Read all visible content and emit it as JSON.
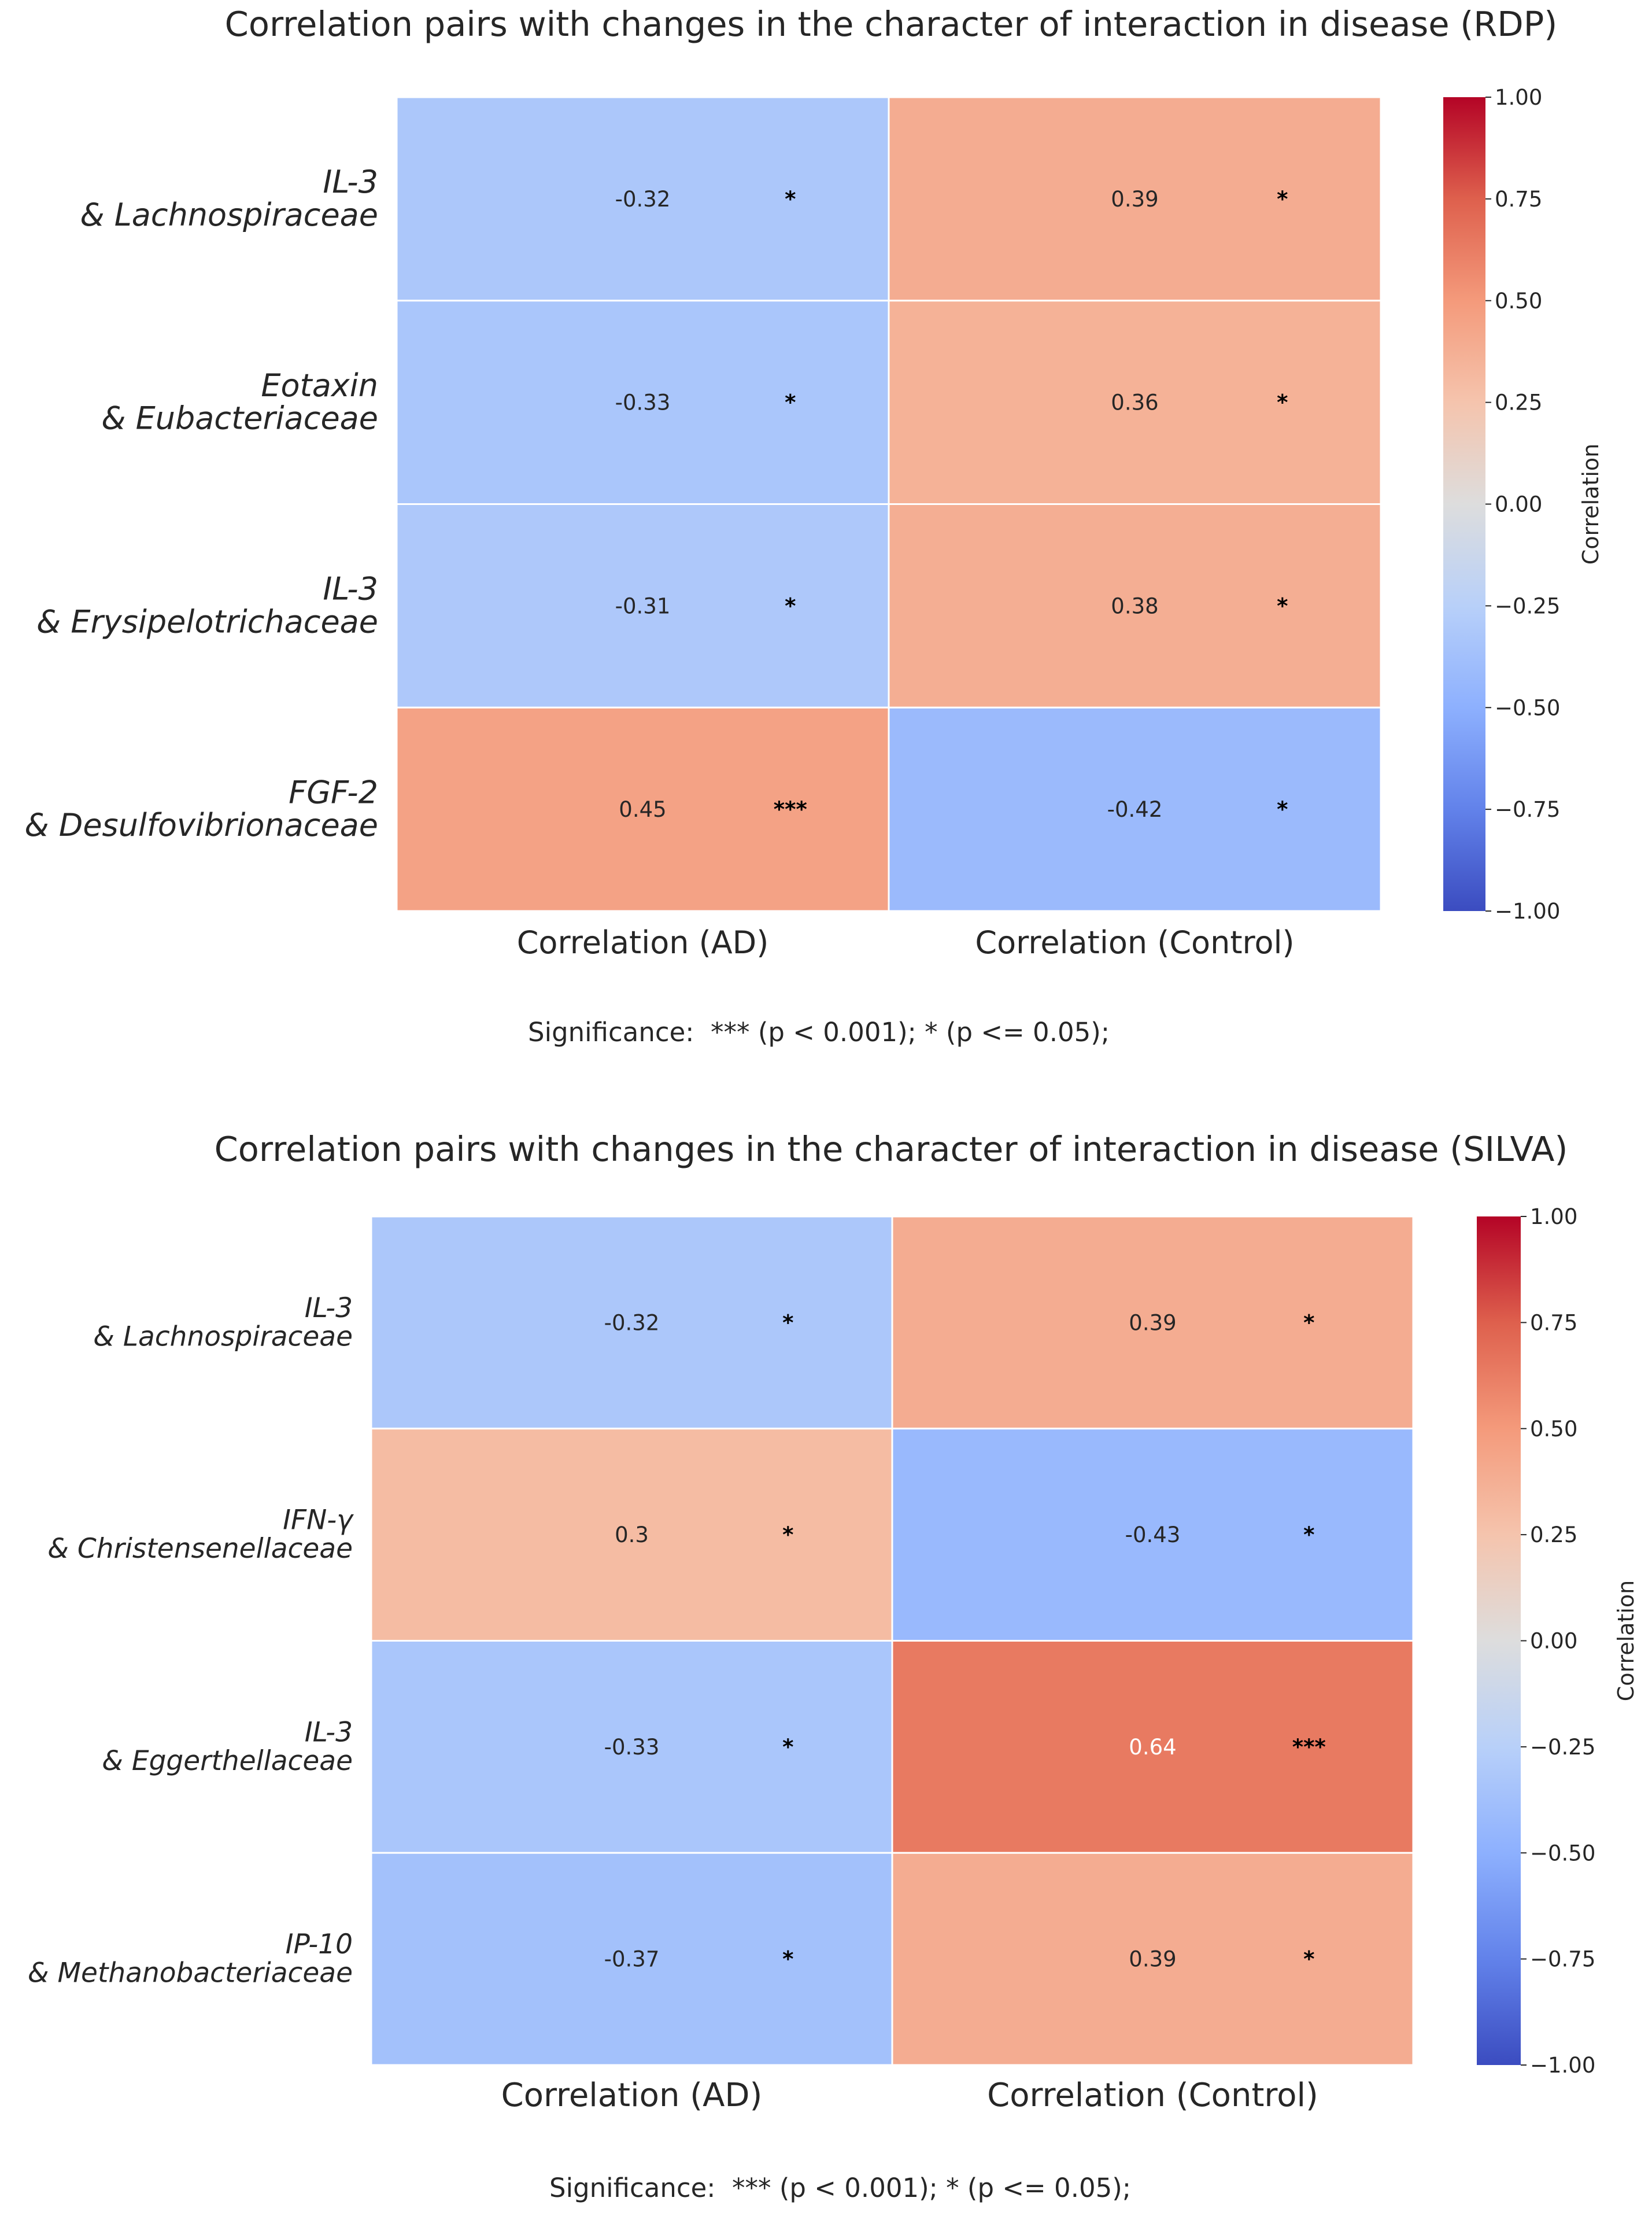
{
  "chart_data": [
    {
      "type": "heatmap",
      "title": "Correlation pairs with changes in the character of interaction in disease (RDP)",
      "columns": [
        "Correlation (AD)",
        "Correlation (Control)"
      ],
      "rows": [
        {
          "line1": "IL-3",
          "line2": "& Lachnospiraceae"
        },
        {
          "line1": "Eotaxin",
          "line2": "& Eubacteriaceae"
        },
        {
          "line1": "IL-3",
          "line2": "& Erysipelotrichaceae"
        },
        {
          "line1": "FGF-2",
          "line2": "& Desulfovibrionaceae"
        }
      ],
      "values": [
        [
          "-0.32",
          "0.39"
        ],
        [
          "-0.33",
          "0.36"
        ],
        [
          "-0.31",
          "0.38"
        ],
        [
          "0.45",
          "-0.42"
        ]
      ],
      "significance": [
        [
          "*",
          "*"
        ],
        [
          "*",
          "*"
        ],
        [
          "*",
          "*"
        ],
        [
          "***",
          "*"
        ]
      ],
      "colorbar": {
        "label": "Correlation",
        "range": [
          -1,
          1
        ],
        "ticks": [
          "1.00",
          "0.75",
          "0.50",
          "0.25",
          "0.00",
          "−0.25",
          "−0.50",
          "−0.75",
          "−1.00"
        ],
        "colormap": "coolwarm"
      },
      "footnote": "Significance:  *** (p < 0.001); * (p <= 0.05);"
    },
    {
      "type": "heatmap",
      "title": "Correlation pairs with changes in the character of interaction in disease (SILVA)",
      "columns": [
        "Correlation (AD)",
        "Correlation (Control)"
      ],
      "rows": [
        {
          "line1": "IL-3",
          "line2": "& Lachnospiraceae"
        },
        {
          "line1": "IFN-γ",
          "line2": "& Christensenellaceae"
        },
        {
          "line1": "IL-3",
          "line2": "& Eggerthellaceae"
        },
        {
          "line1": "IP-10",
          "line2": "& Methanobacteriaceae"
        }
      ],
      "values": [
        [
          "-0.32",
          "0.39"
        ],
        [
          "0.3",
          "-0.43"
        ],
        [
          "-0.33",
          "0.64"
        ],
        [
          "-0.37",
          "0.39"
        ]
      ],
      "significance": [
        [
          "*",
          "*"
        ],
        [
          "*",
          "*"
        ],
        [
          "*",
          "***"
        ],
        [
          "*",
          "*"
        ]
      ],
      "colorbar": {
        "label": "Correlation",
        "range": [
          -1,
          1
        ],
        "ticks": [
          "1.00",
          "0.75",
          "0.50",
          "0.25",
          "0.00",
          "−0.25",
          "−0.50",
          "−0.75",
          "−1.00"
        ],
        "colormap": "coolwarm"
      },
      "footnote": "Significance:  *** (p < 0.001); * (p <= 0.05);"
    }
  ]
}
